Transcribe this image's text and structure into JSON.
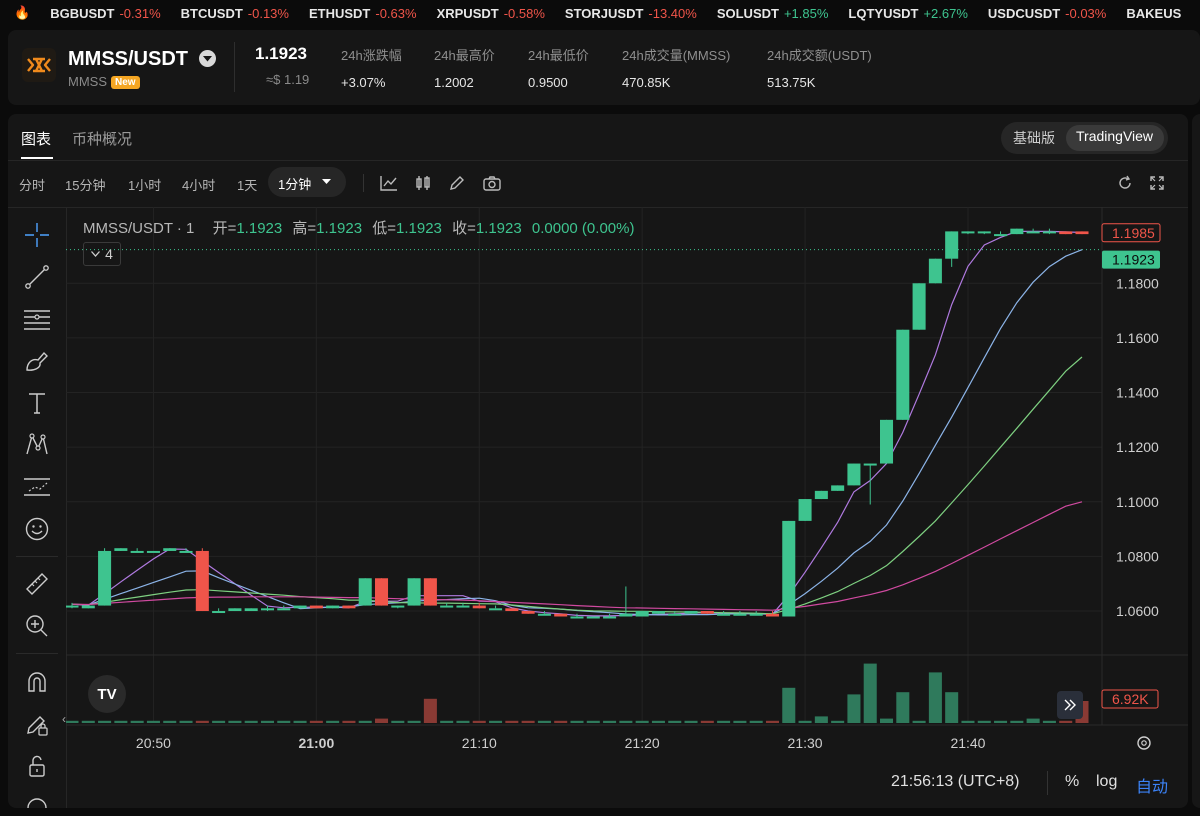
{
  "ticker": [
    {
      "symbol": "BGBUSDT",
      "change": "-0.31%",
      "dir": "down"
    },
    {
      "symbol": "BTCUSDT",
      "change": "-0.13%",
      "dir": "down"
    },
    {
      "symbol": "ETHUSDT",
      "change": "-0.63%",
      "dir": "down"
    },
    {
      "symbol": "XRPUSDT",
      "change": "-0.58%",
      "dir": "down"
    },
    {
      "symbol": "STORJUSDT",
      "change": "-13.40%",
      "dir": "down"
    },
    {
      "symbol": "SOLUSDT",
      "change": "+1.85%",
      "dir": "up"
    },
    {
      "symbol": "LQTYUSDT",
      "change": "+2.67%",
      "dir": "up"
    },
    {
      "symbol": "USDCUSDT",
      "change": "-0.03%",
      "dir": "down"
    },
    {
      "symbol": "BAKEUS",
      "change": "",
      "dir": "down"
    }
  ],
  "header": {
    "pair": "MMSS/USDT",
    "base": "MMSS",
    "badge": "New",
    "price": "1.1923",
    "price_usd": "≈$ 1.19",
    "stats": [
      {
        "label": "24h涨跌幅",
        "value": "+3.07%",
        "dir": "up"
      },
      {
        "label": "24h最高价",
        "value": "1.2002",
        "dir": ""
      },
      {
        "label": "24h最低价",
        "value": "0.9500",
        "dir": ""
      },
      {
        "label": "24h成交量(MMSS)",
        "value": "470.85K",
        "dir": ""
      },
      {
        "label": "24h成交额(USDT)",
        "value": "513.75K",
        "dir": ""
      }
    ]
  },
  "tabs": [
    "图表",
    "币种概况"
  ],
  "view_toggle": {
    "basic": "基础版",
    "tv": "TradingView"
  },
  "intervals": [
    "分时",
    "15分钟",
    "1小时",
    "4小时",
    "1天",
    "1分钟"
  ],
  "legend": {
    "title": "MMSS/USDT · 1",
    "open_label": "开=",
    "open": "1.1923",
    "high_label": "高=",
    "high": "1.1923",
    "low_label": "低=",
    "low": "1.1923",
    "close_label": "收=",
    "close": "1.1923",
    "change": "0.0000 (0.00%)",
    "collapsed_count": "4"
  },
  "colors": {
    "up": "#3ec48f",
    "down": "#f0554a",
    "ma1": "#b07ae0",
    "ma2": "#8cb4e8",
    "ma3": "#7ed081",
    "ma4": "#d04aa0"
  },
  "status": {
    "time": "21:56:13 (UTC+8)",
    "percent": "%",
    "log": "log",
    "auto": "自动"
  },
  "chart_data": {
    "type": "candlestick",
    "x_ticks": [
      "20:50",
      "21:00",
      "21:10",
      "21:20",
      "21:30",
      "21:40"
    ],
    "y_ticks": [
      "1.0600",
      "1.0800",
      "1.1000",
      "1.1200",
      "1.1400",
      "1.1600",
      "1.1800"
    ],
    "ylim": [
      1.045,
      1.205
    ],
    "price_label_high": "1.1985",
    "price_label_last": "1.1923",
    "volume_label": "6.92K",
    "candles": [
      {
        "t": "20:45",
        "o": 1.062,
        "h": 1.063,
        "l": 1.061,
        "c": 1.062
      },
      {
        "t": "20:46",
        "o": 1.061,
        "h": 1.062,
        "l": 1.061,
        "c": 1.062
      },
      {
        "t": "20:47",
        "o": 1.062,
        "h": 1.083,
        "l": 1.062,
        "c": 1.082
      },
      {
        "t": "20:48",
        "o": 1.082,
        "h": 1.083,
        "l": 1.082,
        "c": 1.083
      },
      {
        "t": "20:49",
        "o": 1.082,
        "h": 1.083,
        "l": 1.082,
        "c": 1.082
      },
      {
        "t": "20:50",
        "o": 1.082,
        "h": 1.082,
        "l": 1.082,
        "c": 1.082
      },
      {
        "t": "20:51",
        "o": 1.082,
        "h": 1.083,
        "l": 1.082,
        "c": 1.083
      },
      {
        "t": "20:52",
        "o": 1.082,
        "h": 1.083,
        "l": 1.082,
        "c": 1.082
      },
      {
        "t": "20:53",
        "o": 1.082,
        "h": 1.083,
        "l": 1.06,
        "c": 1.06
      },
      {
        "t": "20:54",
        "o": 1.06,
        "h": 1.061,
        "l": 1.06,
        "c": 1.06
      },
      {
        "t": "20:55",
        "o": 1.06,
        "h": 1.061,
        "l": 1.06,
        "c": 1.061
      },
      {
        "t": "20:56",
        "o": 1.06,
        "h": 1.061,
        "l": 1.06,
        "c": 1.061
      },
      {
        "t": "20:57",
        "o": 1.061,
        "h": 1.062,
        "l": 1.06,
        "c": 1.061
      },
      {
        "t": "20:58",
        "o": 1.061,
        "h": 1.062,
        "l": 1.061,
        "c": 1.061
      },
      {
        "t": "20:59",
        "o": 1.061,
        "h": 1.062,
        "l": 1.061,
        "c": 1.062
      },
      {
        "t": "21:00",
        "o": 1.062,
        "h": 1.062,
        "l": 1.061,
        "c": 1.061
      },
      {
        "t": "21:01",
        "o": 1.061,
        "h": 1.062,
        "l": 1.061,
        "c": 1.062
      },
      {
        "t": "21:02",
        "o": 1.062,
        "h": 1.062,
        "l": 1.061,
        "c": 1.061
      },
      {
        "t": "21:03",
        "o": 1.062,
        "h": 1.072,
        "l": 1.062,
        "c": 1.072
      },
      {
        "t": "21:04",
        "o": 1.072,
        "h": 1.072,
        "l": 1.062,
        "c": 1.062
      },
      {
        "t": "21:05",
        "o": 1.062,
        "h": 1.062,
        "l": 1.061,
        "c": 1.062
      },
      {
        "t": "21:06",
        "o": 1.062,
        "h": 1.072,
        "l": 1.062,
        "c": 1.072
      },
      {
        "t": "21:07",
        "o": 1.072,
        "h": 1.072,
        "l": 1.062,
        "c": 1.062
      },
      {
        "t": "21:08",
        "o": 1.062,
        "h": 1.063,
        "l": 1.062,
        "c": 1.062
      },
      {
        "t": "21:09",
        "o": 1.062,
        "h": 1.063,
        "l": 1.062,
        "c": 1.062
      },
      {
        "t": "21:10",
        "o": 1.062,
        "h": 1.063,
        "l": 1.061,
        "c": 1.061
      },
      {
        "t": "21:11",
        "o": 1.061,
        "h": 1.062,
        "l": 1.061,
        "c": 1.061
      },
      {
        "t": "21:12",
        "o": 1.061,
        "h": 1.061,
        "l": 1.06,
        "c": 1.06
      },
      {
        "t": "21:13",
        "o": 1.06,
        "h": 1.06,
        "l": 1.059,
        "c": 1.059
      },
      {
        "t": "21:14",
        "o": 1.059,
        "h": 1.06,
        "l": 1.059,
        "c": 1.059
      },
      {
        "t": "21:15",
        "o": 1.059,
        "h": 1.059,
        "l": 1.058,
        "c": 1.058
      },
      {
        "t": "21:16",
        "o": 1.058,
        "h": 1.059,
        "l": 1.058,
        "c": 1.058
      },
      {
        "t": "21:17",
        "o": 1.058,
        "h": 1.058,
        "l": 1.058,
        "c": 1.058
      },
      {
        "t": "21:18",
        "o": 1.058,
        "h": 1.059,
        "l": 1.058,
        "c": 1.058
      },
      {
        "t": "21:19",
        "o": 1.058,
        "h": 1.069,
        "l": 1.058,
        "c": 1.059
      },
      {
        "t": "21:20",
        "o": 1.058,
        "h": 1.06,
        "l": 1.058,
        "c": 1.06
      },
      {
        "t": "21:21",
        "o": 1.059,
        "h": 1.06,
        "l": 1.059,
        "c": 1.06
      },
      {
        "t": "21:22",
        "o": 1.059,
        "h": 1.06,
        "l": 1.059,
        "c": 1.059
      },
      {
        "t": "21:23",
        "o": 1.059,
        "h": 1.06,
        "l": 1.059,
        "c": 1.06
      },
      {
        "t": "21:24",
        "o": 1.06,
        "h": 1.06,
        "l": 1.059,
        "c": 1.059
      },
      {
        "t": "21:25",
        "o": 1.059,
        "h": 1.06,
        "l": 1.059,
        "c": 1.059
      },
      {
        "t": "21:26",
        "o": 1.059,
        "h": 1.06,
        "l": 1.059,
        "c": 1.059
      },
      {
        "t": "21:27",
        "o": 1.059,
        "h": 1.06,
        "l": 1.059,
        "c": 1.059
      },
      {
        "t": "21:28",
        "o": 1.059,
        "h": 1.06,
        "l": 1.058,
        "c": 1.058
      },
      {
        "t": "21:29",
        "o": 1.058,
        "h": 1.093,
        "l": 1.058,
        "c": 1.093
      },
      {
        "t": "21:30",
        "o": 1.093,
        "h": 1.101,
        "l": 1.093,
        "c": 1.101
      },
      {
        "t": "21:31",
        "o": 1.101,
        "h": 1.104,
        "l": 1.101,
        "c": 1.104
      },
      {
        "t": "21:32",
        "o": 1.104,
        "h": 1.106,
        "l": 1.104,
        "c": 1.106
      },
      {
        "t": "21:33",
        "o": 1.106,
        "h": 1.114,
        "l": 1.106,
        "c": 1.114
      },
      {
        "t": "21:34",
        "o": 1.114,
        "h": 1.114,
        "l": 1.099,
        "c": 1.114
      },
      {
        "t": "21:35",
        "o": 1.114,
        "h": 1.13,
        "l": 1.114,
        "c": 1.13
      },
      {
        "t": "21:36",
        "o": 1.13,
        "h": 1.163,
        "l": 1.13,
        "c": 1.163
      },
      {
        "t": "21:37",
        "o": 1.163,
        "h": 1.18,
        "l": 1.163,
        "c": 1.18
      },
      {
        "t": "21:38",
        "o": 1.18,
        "h": 1.189,
        "l": 1.18,
        "c": 1.189
      },
      {
        "t": "21:39",
        "o": 1.189,
        "h": 1.199,
        "l": 1.186,
        "c": 1.199
      },
      {
        "t": "21:40",
        "o": 1.199,
        "h": 1.199,
        "l": 1.198,
        "c": 1.199
      },
      {
        "t": "21:41",
        "o": 1.199,
        "h": 1.199,
        "l": 1.198,
        "c": 1.199
      },
      {
        "t": "21:42",
        "o": 1.198,
        "h": 1.199,
        "l": 1.198,
        "c": 1.198
      },
      {
        "t": "21:43",
        "o": 1.198,
        "h": 1.2,
        "l": 1.198,
        "c": 1.2
      },
      {
        "t": "21:44",
        "o": 1.199,
        "h": 1.2,
        "l": 1.199,
        "c": 1.199
      },
      {
        "t": "21:45",
        "o": 1.199,
        "h": 1.2,
        "l": 1.198,
        "c": 1.199
      },
      {
        "t": "21:46",
        "o": 1.199,
        "h": 1.199,
        "l": 1.198,
        "c": 1.198
      },
      {
        "t": "21:47",
        "o": 1.199,
        "h": 1.199,
        "l": 1.198,
        "c": 1.198
      }
    ],
    "volumes": [
      0.1,
      0.1,
      0.1,
      0.1,
      0.1,
      0.1,
      0.1,
      0.1,
      0.1,
      0.1,
      0.1,
      0.1,
      0.1,
      0.1,
      0.1,
      0.1,
      0.1,
      0.1,
      0.1,
      0.2,
      0.1,
      0.1,
      1.1,
      0.1,
      0.1,
      0.1,
      0.1,
      0.1,
      0.1,
      0.1,
      0.1,
      0.1,
      0.1,
      0.1,
      0.1,
      0.1,
      0.1,
      0.1,
      0.1,
      0.1,
      0.1,
      0.1,
      0.1,
      0.1,
      1.6,
      0.1,
      0.3,
      0.1,
      1.3,
      2.7,
      0.2,
      1.4,
      0.1,
      2.3,
      1.4,
      0.1,
      0.1,
      0.1,
      0.1,
      0.2,
      0.1,
      0.1,
      1.0
    ],
    "ma_series": [
      {
        "color": "#b07ae0",
        "values": [
          1.0625,
          1.0621,
          1.0663,
          1.0707,
          1.0749,
          1.0791,
          1.0827,
          1.0826,
          1.0783,
          1.0741,
          1.07,
          1.0658,
          1.0618,
          1.0612,
          1.0614,
          1.0614,
          1.0614,
          1.0612,
          1.0634,
          1.0636,
          1.0636,
          1.0656,
          1.0656,
          1.0656,
          1.0656,
          1.0636,
          1.0634,
          1.0612,
          1.06,
          1.0594,
          1.059,
          1.0584,
          1.0582,
          1.0582,
          1.0584,
          1.0586,
          1.0588,
          1.059,
          1.0592,
          1.0594,
          1.0592,
          1.0592,
          1.059,
          1.0588,
          1.0658,
          1.0742,
          1.0832,
          1.0924,
          1.1036,
          1.1078,
          1.114,
          1.1254,
          1.1394,
          1.1538,
          1.1722,
          1.1862,
          1.194,
          1.1968,
          1.199,
          1.199,
          1.199,
          1.1988,
          1.1986
        ]
      },
      {
        "color": "#8cb4e8",
        "values": [
          1.0625,
          1.0622,
          1.0643,
          1.0664,
          1.0684,
          1.0705,
          1.0725,
          1.0746,
          1.0747,
          1.0722,
          1.0699,
          1.0676,
          1.0653,
          1.063,
          1.0609,
          1.0612,
          1.0614,
          1.0615,
          1.0623,
          1.0627,
          1.063,
          1.0636,
          1.064,
          1.0642,
          1.0645,
          1.0647,
          1.0638,
          1.0621,
          1.0612,
          1.061,
          1.0607,
          1.0602,
          1.0598,
          1.0594,
          1.0589,
          1.0587,
          1.0586,
          1.0586,
          1.0587,
          1.0587,
          1.0589,
          1.059,
          1.059,
          1.059,
          1.0623,
          1.0664,
          1.0709,
          1.0757,
          1.0813,
          1.0855,
          1.0915,
          1.1003,
          1.1103,
          1.1207,
          1.131,
          1.1418,
          1.1527,
          1.1634,
          1.1729,
          1.1804,
          1.1861,
          1.1899,
          1.1923
        ]
      },
      {
        "color": "#7ed081",
        "values": [
          1.0625,
          1.0623,
          1.0632,
          1.0642,
          1.0651,
          1.066,
          1.0669,
          1.0677,
          1.0678,
          1.0674,
          1.067,
          1.0666,
          1.0662,
          1.0658,
          1.0653,
          1.0649,
          1.0645,
          1.064,
          1.064,
          1.0635,
          1.0631,
          1.063,
          1.0629,
          1.0629,
          1.0628,
          1.0627,
          1.0626,
          1.0622,
          1.0617,
          1.0612,
          1.0607,
          1.0603,
          1.0601,
          1.06,
          1.0599,
          1.0599,
          1.0598,
          1.0597,
          1.0596,
          1.0595,
          1.0594,
          1.0593,
          1.0592,
          1.059,
          1.0606,
          1.0626,
          1.0648,
          1.0671,
          1.0701,
          1.073,
          1.0766,
          1.0818,
          1.0873,
          1.093,
          1.0996,
          1.1063,
          1.1131,
          1.12,
          1.1269,
          1.1339,
          1.1408,
          1.1478,
          1.153
        ]
      },
      {
        "color": "#d04aa0",
        "values": [
          1.0625,
          1.0624,
          1.0628,
          1.0632,
          1.0636,
          1.064,
          1.0644,
          1.0648,
          1.065,
          1.0651,
          1.0651,
          1.0652,
          1.0652,
          1.0652,
          1.0652,
          1.0651,
          1.065,
          1.0649,
          1.0649,
          1.0647,
          1.0645,
          1.0644,
          1.0643,
          1.0641,
          1.064,
          1.0638,
          1.0635,
          1.0632,
          1.0629,
          1.0626,
          1.0623,
          1.062,
          1.0617,
          1.0614,
          1.0612,
          1.0611,
          1.061,
          1.0609,
          1.0608,
          1.0607,
          1.0606,
          1.0605,
          1.0604,
          1.0603,
          1.061,
          1.0617,
          1.0626,
          1.0635,
          1.0648,
          1.066,
          1.0675,
          1.0696,
          1.072,
          1.0745,
          1.0774,
          1.0804,
          1.0834,
          1.0864,
          1.0894,
          1.0924,
          1.0954,
          1.0984,
          1.1
        ]
      }
    ]
  }
}
